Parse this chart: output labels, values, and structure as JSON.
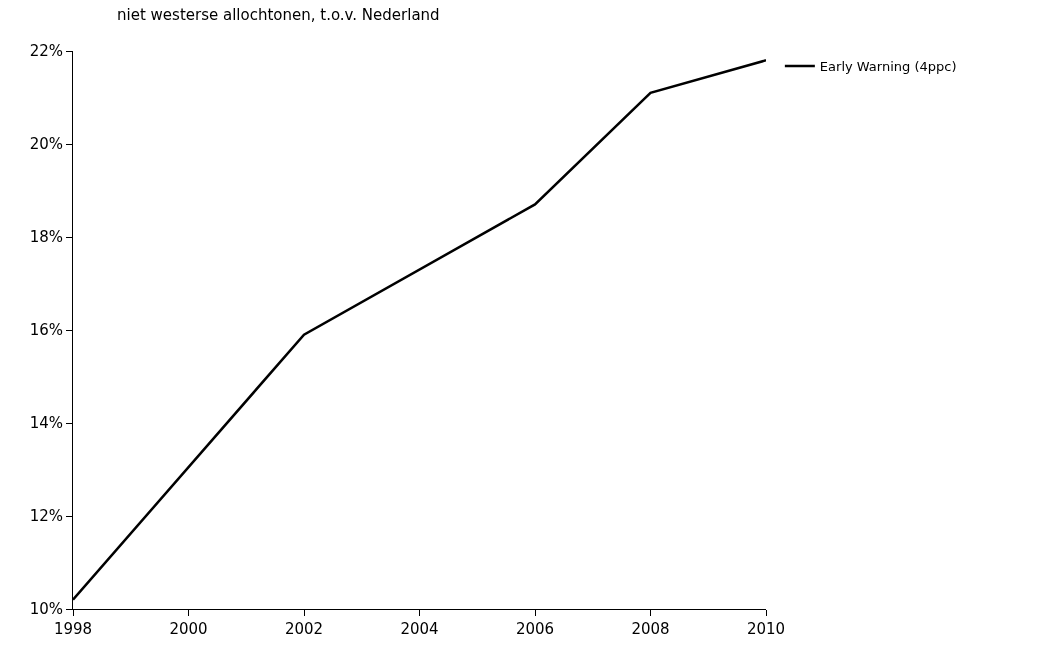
{
  "chart_data": {
    "type": "line",
    "title": "niet westerse allochtonen, t.o.v. Nederland",
    "x": [
      1998,
      2002,
      2006,
      2008,
      2010
    ],
    "series": [
      {
        "name": "Early Warning (4ppc)",
        "color": "#000000",
        "values": [
          10.2,
          15.9,
          18.7,
          21.1,
          21.8
        ]
      }
    ],
    "xlim": [
      1998,
      2010
    ],
    "xticks": [
      1998,
      2000,
      2002,
      2004,
      2006,
      2008,
      2010
    ],
    "ylim": [
      10,
      22
    ],
    "yticks": [
      {
        "value": 10,
        "label": "10%"
      },
      {
        "value": 12,
        "label": "12%"
      },
      {
        "value": 14,
        "label": "14%"
      },
      {
        "value": 16,
        "label": "16%"
      },
      {
        "value": 18,
        "label": "18%"
      },
      {
        "value": 20,
        "label": "20%"
      },
      {
        "value": 22,
        "label": "22%"
      }
    ],
    "grid": false,
    "legend": "top right",
    "marker": "none",
    "line_style": "solid"
  }
}
